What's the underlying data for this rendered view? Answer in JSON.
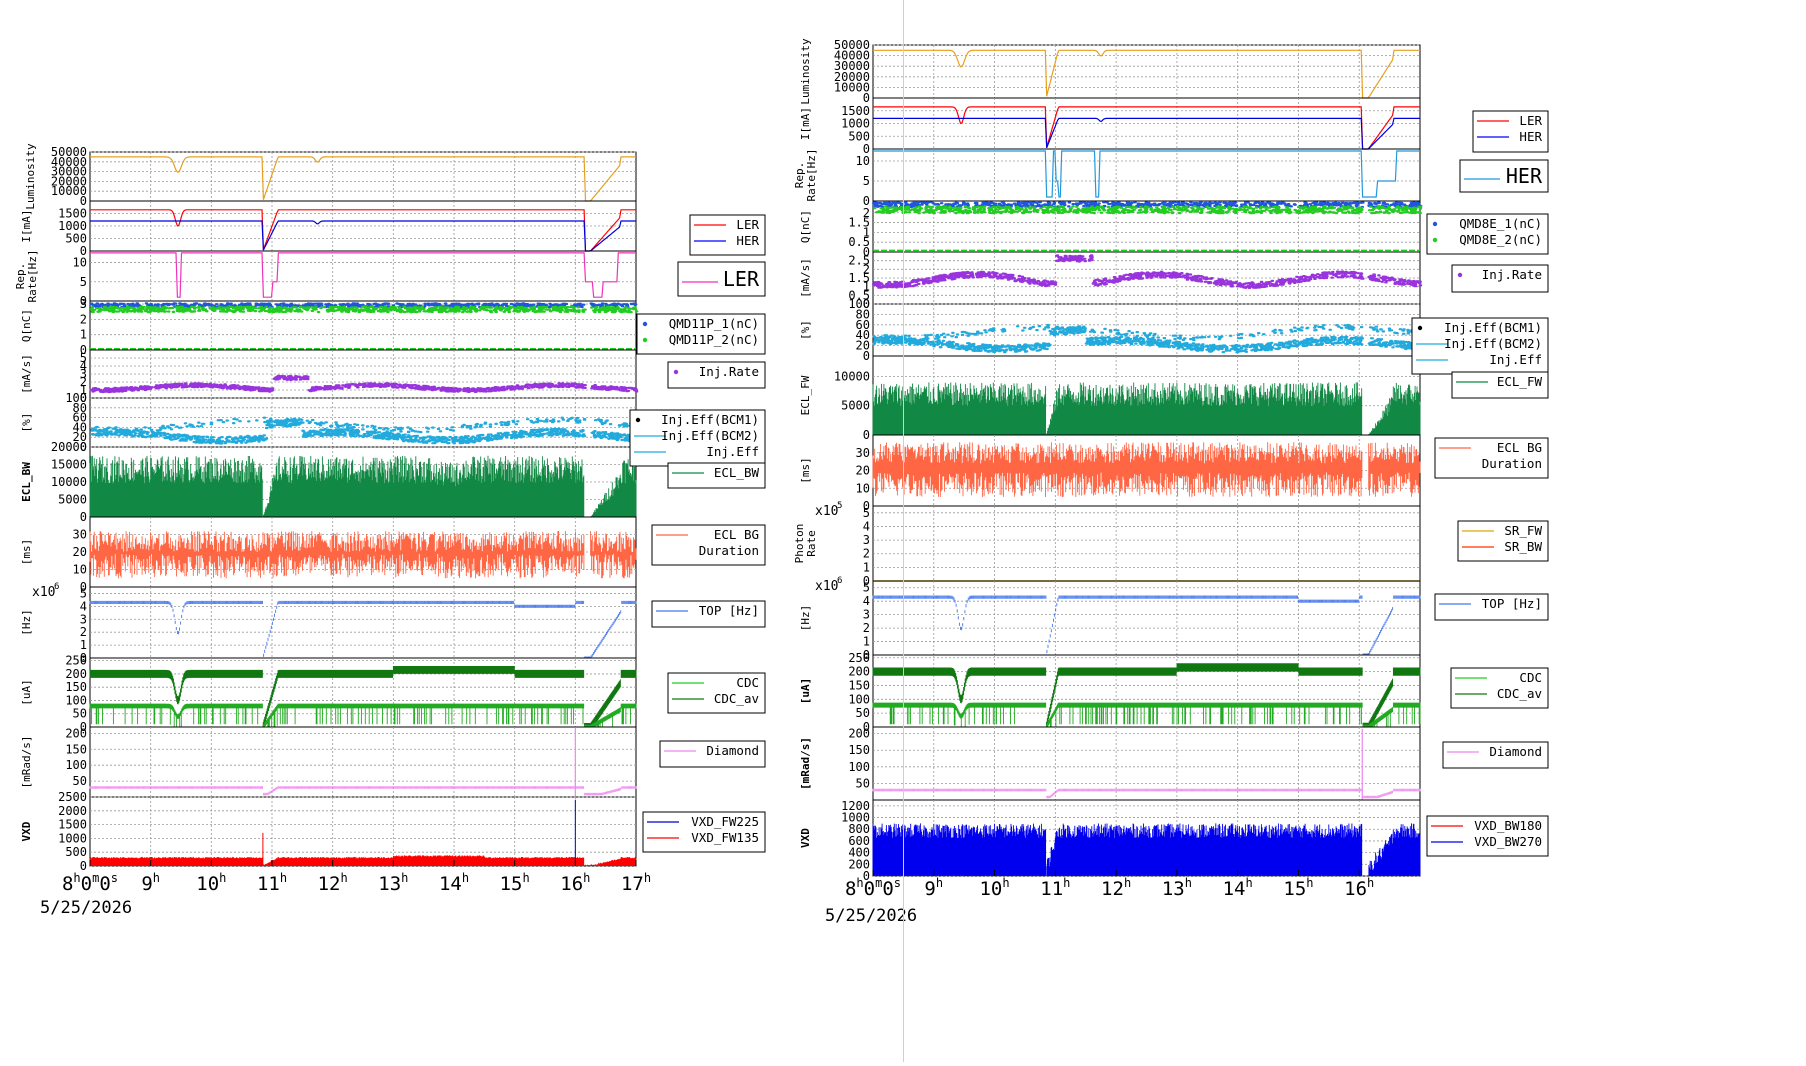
{
  "time_axis": {
    "unit": "hour",
    "date_label": "5/25/2026",
    "left_ticks": [
      "8h0m0s",
      "9h",
      "10h",
      "11h",
      "12h",
      "13h",
      "14h",
      "15h",
      "16h",
      "17h"
    ],
    "right_ticks": [
      "8h0m0s",
      "9h",
      "10h",
      "11h",
      "12h",
      "13h",
      "14h",
      "15h",
      "16h"
    ]
  },
  "left_panel": {
    "xlim": [
      8,
      17
    ],
    "legends": [
      {
        "panel": "i_ma",
        "entries": [
          {
            "label": "LER",
            "color": "#ff0000"
          },
          {
            "label": "HER",
            "color": "#0000ff"
          }
        ]
      },
      {
        "panel": "rep",
        "entries": [
          {
            "label": "LER",
            "color": "#ee33bb"
          }
        ],
        "large": true
      },
      {
        "panel": "q",
        "entries": [
          {
            "label": "QMD11P_1(nC)",
            "color": "#2255dd",
            "dot": true
          },
          {
            "label": "QMD11P_2(nC)",
            "color": "#22cc22",
            "dot": true
          }
        ]
      },
      {
        "panel": "inj",
        "entries": [
          {
            "label": "Inj.Rate",
            "color": "#9933dd",
            "dot": true
          }
        ]
      },
      {
        "panel": "eff",
        "entries": [
          {
            "label": "Inj.Eff(BCM1)",
            "color": "#000000",
            "dot": true
          },
          {
            "label": "Inj.Eff(BCM2)",
            "color": "#22aadd"
          },
          {
            "label": "Inj.Eff",
            "color": "#22aadd"
          }
        ]
      },
      {
        "panel": "ecl",
        "entries": [
          {
            "label": "ECL_BW",
            "color": "#118844"
          }
        ]
      },
      {
        "panel": "dur",
        "entries": [
          {
            "label": "ECL BG\nDuration",
            "color": "#ff6644"
          }
        ]
      },
      {
        "panel": "top",
        "entries": [
          {
            "label": "TOP [Hz]",
            "color": "#4477ee"
          }
        ]
      },
      {
        "panel": "cdc",
        "entries": [
          {
            "label": "CDC",
            "color": "#22cc22"
          },
          {
            "label": "CDC_av",
            "color": "#117711"
          }
        ]
      },
      {
        "panel": "dia",
        "entries": [
          {
            "label": "Diamond",
            "color": "#ee88ee"
          }
        ]
      },
      {
        "panel": "vxd",
        "entries": [
          {
            "label": "VXD_FW225",
            "color": "#0000cc"
          },
          {
            "label": "VXD_FW135",
            "color": "#ff0000"
          }
        ]
      }
    ],
    "panels": [
      {
        "id": "lum",
        "ylabel": "Luminosity",
        "ylim": [
          0,
          50000
        ],
        "ticks": [
          "50000",
          "40000",
          "30000",
          "20000",
          "10000",
          "0"
        ]
      },
      {
        "id": "i_ma",
        "ylabel": "I[mA]",
        "ylim": [
          0,
          2000
        ],
        "ticks": [
          "1500",
          "1000",
          "500",
          "0"
        ]
      },
      {
        "id": "rep",
        "ylabel": "Rep.\nRate[Hz]",
        "ylim": [
          0,
          13
        ],
        "ticks": [
          "10",
          "5",
          "0"
        ]
      },
      {
        "id": "q",
        "ylabel": "Q[nC]",
        "ylim": [
          0,
          3.2
        ],
        "ticks": [
          "3",
          "2",
          "1",
          "0"
        ]
      },
      {
        "id": "inj",
        "ylabel": "[mA/s]",
        "ylim": [
          0,
          6
        ],
        "ticks": [
          "5",
          "4",
          "3",
          "2",
          "1",
          "0"
        ]
      },
      {
        "id": "eff",
        "ylabel": "[%]",
        "ylim": [
          0,
          100
        ],
        "ticks": [
          "100",
          "80",
          "60",
          "40",
          "20",
          "0"
        ]
      },
      {
        "id": "ecl",
        "ylabel": "ECL_BW",
        "ylim": [
          0,
          20000
        ],
        "ticks": [
          "20000",
          "15000",
          "10000",
          "5000",
          "0"
        ],
        "bold_label": true
      },
      {
        "id": "dur",
        "ylabel": "[ms]",
        "ylim": [
          0,
          40
        ],
        "ticks": [
          "30",
          "20",
          "10",
          "0"
        ]
      },
      {
        "id": "top",
        "ylabel": "[Hz]",
        "ylim": [
          0,
          5.5
        ],
        "ticks": [
          "5",
          "4",
          "3",
          "2",
          "1",
          "0"
        ],
        "multiplier": "x10^6"
      },
      {
        "id": "cdc",
        "ylabel": "[uA]",
        "ylim": [
          0,
          260
        ],
        "ticks": [
          "250",
          "200",
          "150",
          "100",
          "50",
          "0"
        ]
      },
      {
        "id": "dia",
        "ylabel": "[mRad/s]",
        "ylim": [
          0,
          220
        ],
        "ticks": [
          "200",
          "150",
          "100",
          "50"
        ]
      },
      {
        "id": "vxd",
        "ylabel": "VXD",
        "ylim": [
          0,
          2500
        ],
        "ticks": [
          "2500",
          "2000",
          "1500",
          "1000",
          "500",
          "0"
        ],
        "bold_label": true
      }
    ],
    "events": {
      "beam_loss": [
        10.85,
        16.15
      ]
    }
  },
  "right_panel": {
    "xlim": [
      8,
      17
    ],
    "legends": [
      {
        "panel": "i_ma",
        "entries": [
          {
            "label": "LER",
            "color": "#ff0000"
          },
          {
            "label": "HER",
            "color": "#0000ff"
          }
        ]
      },
      {
        "panel": "rep",
        "entries": [
          {
            "label": "HER",
            "color": "#2299dd"
          }
        ],
        "large": true
      },
      {
        "panel": "q",
        "entries": [
          {
            "label": "QMD8E_1(nC)",
            "color": "#2255dd",
            "dot": true
          },
          {
            "label": "QMD8E_2(nC)",
            "color": "#22cc22",
            "dot": true
          }
        ]
      },
      {
        "panel": "inj",
        "entries": [
          {
            "label": "Inj.Rate",
            "color": "#9933dd",
            "dot": true
          }
        ]
      },
      {
        "panel": "eff",
        "entries": [
          {
            "label": "Inj.Eff(BCM1)",
            "color": "#000000",
            "dot": true
          },
          {
            "label": "Inj.Eff(BCM2)",
            "color": "#22aadd"
          },
          {
            "label": "Inj.Eff",
            "color": "#22aadd"
          }
        ]
      },
      {
        "panel": "ecl",
        "entries": [
          {
            "label": "ECL_FW",
            "color": "#118844"
          }
        ]
      },
      {
        "panel": "dur",
        "entries": [
          {
            "label": "ECL BG\nDuration",
            "color": "#ff6644"
          }
        ]
      },
      {
        "panel": "sr",
        "entries": [
          {
            "label": "SR_FW",
            "color": "#ddaa00"
          },
          {
            "label": "SR_BW",
            "color": "#ff3300"
          }
        ]
      },
      {
        "panel": "top",
        "entries": [
          {
            "label": "TOP [Hz]",
            "color": "#4477ee"
          }
        ]
      },
      {
        "panel": "cdc",
        "entries": [
          {
            "label": "CDC",
            "color": "#22cc22"
          },
          {
            "label": "CDC_av",
            "color": "#117711"
          }
        ]
      },
      {
        "panel": "dia",
        "entries": [
          {
            "label": "Diamond",
            "color": "#ee88ee"
          }
        ]
      },
      {
        "panel": "vxd",
        "entries": [
          {
            "label": "VXD_BW180",
            "color": "#ff0000"
          },
          {
            "label": "VXD_BW270",
            "color": "#0000ee"
          }
        ]
      }
    ],
    "panels": [
      {
        "id": "lum",
        "ylabel": "Luminosity",
        "ylim": [
          0,
          50000
        ],
        "ticks": [
          "50000",
          "40000",
          "30000",
          "20000",
          "10000",
          "0"
        ]
      },
      {
        "id": "i_ma",
        "ylabel": "I[mA]",
        "ylim": [
          0,
          2000
        ],
        "ticks": [
          "1500",
          "1000",
          "500",
          "0"
        ]
      },
      {
        "id": "rep",
        "ylabel": "Rep.\nRate[Hz]",
        "ylim": [
          0,
          13
        ],
        "ticks": [
          "10",
          "5",
          "0"
        ]
      },
      {
        "id": "q",
        "ylabel": "Q[nC]",
        "ylim": [
          0,
          2.6
        ],
        "ticks": [
          "2",
          "1.5",
          "1",
          "0.5",
          "0"
        ]
      },
      {
        "id": "inj",
        "ylabel": "[mA/s]",
        "ylim": [
          0,
          3
        ],
        "ticks": [
          "2.5",
          "2",
          "1.5",
          "1",
          "0.5",
          "0"
        ]
      },
      {
        "id": "eff",
        "ylabel": "[%]",
        "ylim": [
          0,
          100
        ],
        "ticks": [
          "100",
          "80",
          "60",
          "40",
          "20",
          "0"
        ]
      },
      {
        "id": "ecl",
        "ylabel": "ECL_FW",
        "ylim": [
          0,
          13500
        ],
        "ticks": [
          "10000",
          "5000",
          "0"
        ]
      },
      {
        "id": "dur",
        "ylabel": "[ms]",
        "ylim": [
          0,
          40
        ],
        "ticks": [
          "30",
          "20",
          "10",
          "0"
        ]
      },
      {
        "id": "sr",
        "ylabel": "Photon\nRate",
        "ylim": [
          0,
          5.5
        ],
        "ticks": [
          "5",
          "4",
          "3",
          "2",
          "1",
          "0"
        ],
        "multiplier": "x10^5"
      },
      {
        "id": "top",
        "ylabel": "[Hz]",
        "ylim": [
          0,
          5.5
        ],
        "ticks": [
          "5",
          "4",
          "3",
          "2",
          "1",
          "0"
        ],
        "multiplier": "x10^6"
      },
      {
        "id": "cdc",
        "ylabel": "[uA]",
        "ylim": [
          0,
          260
        ],
        "ticks": [
          "250",
          "200",
          "150",
          "100",
          "50",
          "0"
        ],
        "bold_label": true
      },
      {
        "id": "dia",
        "ylabel": "[mRad/s]",
        "ylim": [
          0,
          220
        ],
        "ticks": [
          "200",
          "150",
          "100",
          "50"
        ],
        "bold_label": true
      },
      {
        "id": "vxd",
        "ylabel": "VXD",
        "ylim": [
          0,
          1300
        ],
        "ticks": [
          "1200",
          "1000",
          "800",
          "600",
          "400",
          "200",
          "0"
        ],
        "bold_label": true
      }
    ],
    "events": {
      "beam_loss": [
        10.85,
        16.05
      ]
    }
  },
  "chart_data": {
    "type": "line",
    "x_unit": "hour of day",
    "series_summary": [
      {
        "name": "Luminosity",
        "typical": 45000,
        "dips_at": [
          9.45,
          11.75
        ]
      },
      {
        "name": "LER",
        "typical": 1650
      },
      {
        "name": "HER",
        "typical": 1250
      },
      {
        "name": "TOP [Hz]",
        "typical": 4300000.0
      },
      {
        "name": "CDC",
        "typical": 200
      },
      {
        "name": "CDC_av",
        "typical": 85
      },
      {
        "name": "Diamond",
        "typical": 30
      },
      {
        "name": "VXD_FW135",
        "typical": 300
      },
      {
        "name": "VXD_BW270",
        "typical": 700
      }
    ]
  },
  "colors": {
    "grid": "#9a9a9a",
    "lum": "#e6a020",
    "ler": "#ff0000",
    "her": "#0000dd",
    "rep_left": "#ee33bb",
    "rep_right": "#2299dd",
    "q1": "#2255dd",
    "q2": "#22cc22",
    "inj": "#9933dd",
    "eff": "#22aadd",
    "ecl": "#118844",
    "dur": "#ff6644",
    "sr_fw": "#ddaa00",
    "top": "#4477ee",
    "cdc": "#22aa22",
    "cdc_av": "#117711",
    "dia": "#ee88ee",
    "vxd_fw": "#ff0000",
    "vxd_bw": "#0000ee"
  }
}
